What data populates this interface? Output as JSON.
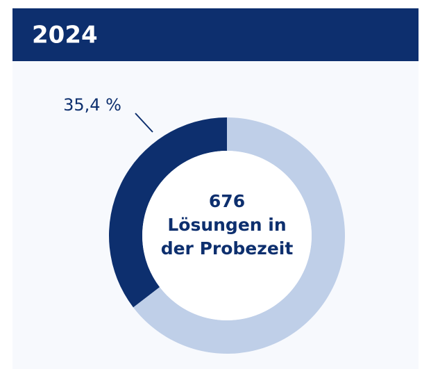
{
  "chart_data": {
    "type": "donut",
    "title": "2024",
    "values": [
      35.4,
      64.6
    ],
    "value_labels": [
      "35,4 %",
      null
    ],
    "colors": [
      "#0d2f6e",
      "#bfcfe8"
    ],
    "center_value": 676,
    "center_lines": [
      "Lösungen in",
      "der Probezeit"
    ]
  }
}
